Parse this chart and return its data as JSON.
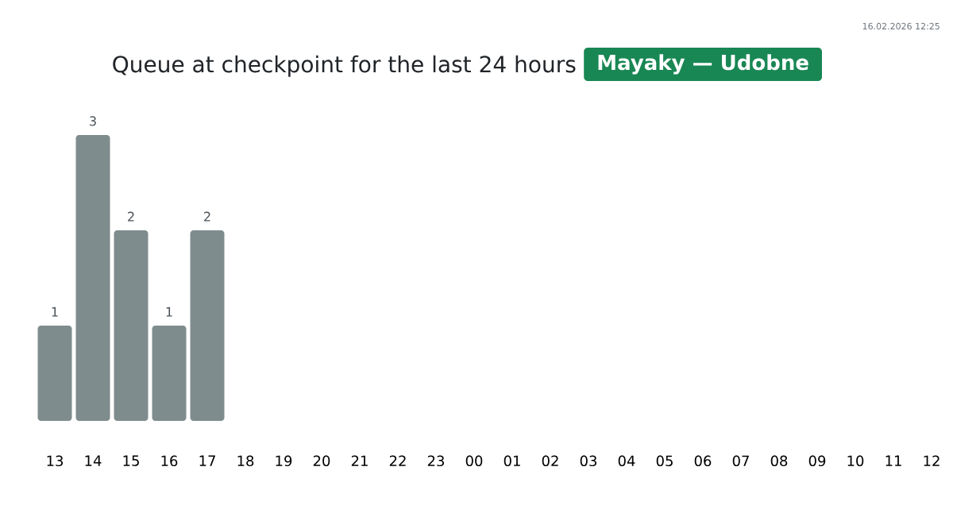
{
  "chart_data": {
    "type": "bar",
    "title": "Queue at checkpoint for the last 24 hours",
    "subtitle": "Mayaky — Udobne",
    "categories": [
      "13",
      "14",
      "15",
      "16",
      "17",
      "18",
      "19",
      "20",
      "21",
      "22",
      "23",
      "00",
      "01",
      "02",
      "03",
      "04",
      "05",
      "06",
      "07",
      "08",
      "09",
      "10",
      "11",
      "12"
    ],
    "values": [
      1,
      3,
      2,
      1,
      2,
      null,
      null,
      null,
      null,
      null,
      null,
      null,
      null,
      null,
      null,
      null,
      null,
      null,
      null,
      null,
      null,
      null,
      null,
      null
    ],
    "color": "#7f8c8d",
    "data_labels": true,
    "ylim": [
      0,
      3
    ],
    "tick_labels": "x",
    "annotations": [
      "16.02.2026 12:25"
    ]
  }
}
